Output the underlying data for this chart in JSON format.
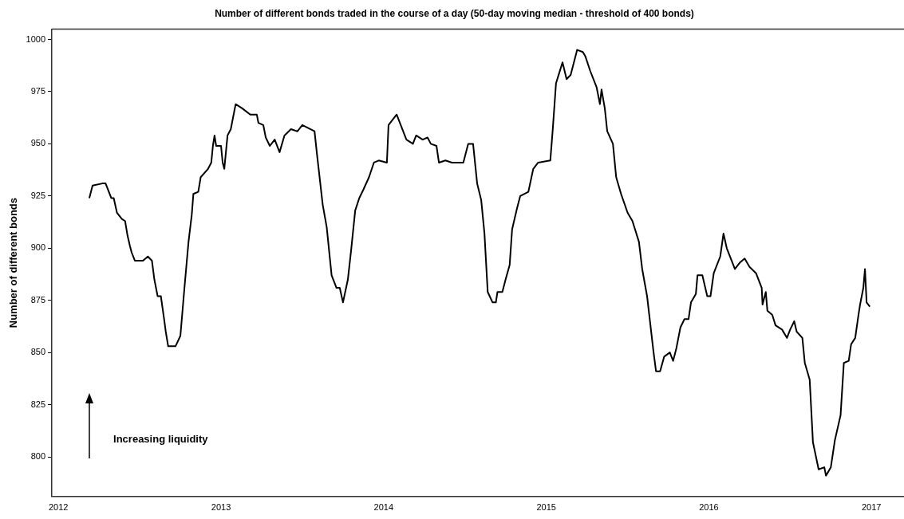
{
  "chart_data": {
    "type": "line",
    "title": "Number of different bonds traded in the course of a day (50-day moving median - threshold of 400 bonds)",
    "ylabel": "Number of different bonds",
    "annotations": [
      "Increasing liquidity"
    ],
    "series": [
      {
        "color": "#000000",
        "x": [
          2012.19,
          2012.21,
          2012.27,
          2012.29,
          2012.325,
          2012.34,
          2012.36,
          2012.39,
          2012.41,
          2012.425,
          2012.44,
          2012.45,
          2012.47,
          2012.52,
          2012.55,
          2012.575,
          2012.59,
          2012.61,
          2012.63,
          2012.65,
          2012.66,
          2012.675,
          2012.72,
          2012.75,
          2012.775,
          2012.8,
          2012.82,
          2012.83,
          2012.86,
          2012.875,
          2012.92,
          2012.94,
          2012.95,
          2012.96,
          2012.97,
          2013.0,
          2013.01,
          2013.02,
          2013.04,
          2013.06,
          2013.09,
          2013.13,
          2013.18,
          2013.22,
          2013.23,
          2013.26,
          2013.275,
          2013.3,
          2013.33,
          2013.36,
          2013.39,
          2013.43,
          2013.47,
          2013.5,
          2013.575,
          2013.59,
          2013.625,
          2013.65,
          2013.68,
          2013.71,
          2013.73,
          2013.75,
          2013.78,
          2013.8,
          2013.825,
          2013.85,
          2013.875,
          2013.91,
          2013.94,
          2013.97,
          2014.02,
          2014.03,
          2014.06,
          2014.08,
          2014.11,
          2014.14,
          2014.18,
          2014.2,
          2014.24,
          2014.27,
          2014.29,
          2014.325,
          2014.34,
          2014.38,
          2014.42,
          2014.49,
          2014.52,
          2014.55,
          2014.575,
          2014.6,
          2014.62,
          2014.64,
          2014.67,
          2014.69,
          2014.7,
          2014.73,
          2014.75,
          2014.775,
          2014.79,
          2014.82,
          2014.84,
          2014.89,
          2014.92,
          2014.95,
          2015.025,
          2015.04,
          2015.06,
          2015.08,
          2015.1,
          2015.125,
          2015.15,
          2015.17,
          2015.19,
          2015.225,
          2015.24,
          2015.27,
          2015.31,
          2015.33,
          2015.34,
          2015.36,
          2015.375,
          2015.41,
          2015.43,
          2015.46,
          2015.5,
          2015.53,
          2015.57,
          2015.59,
          2015.62,
          2015.66,
          2015.675,
          2015.7,
          2015.725,
          2015.76,
          2015.78,
          2015.8,
          2015.825,
          2015.85,
          2015.875,
          2015.89,
          2015.92,
          2015.93,
          2015.96,
          2015.99,
          2016.01,
          2016.03,
          2016.07,
          2016.09,
          2016.11,
          2016.16,
          2016.19,
          2016.22,
          2016.25,
          2016.29,
          2016.325,
          2016.33,
          2016.35,
          2016.36,
          2016.39,
          2016.41,
          2016.45,
          2016.48,
          2016.5,
          2016.525,
          2016.54,
          2016.575,
          2016.59,
          2016.62,
          2016.64,
          2016.675,
          2016.71,
          2016.72,
          2016.75,
          2016.775,
          2016.81,
          2016.83,
          2016.86,
          2016.875,
          2016.9,
          2016.92,
          2016.93,
          2016.95,
          2016.96,
          2016.97,
          2016.99
        ],
        "values": [
          924,
          930,
          931,
          931,
          924,
          924,
          917,
          914,
          913,
          906,
          901,
          898,
          894,
          894,
          896,
          894,
          885,
          877,
          877,
          866,
          860,
          853,
          853,
          858,
          881,
          903,
          916,
          926,
          927,
          934,
          938,
          941,
          949,
          954,
          949,
          949,
          941,
          938,
          954,
          957,
          969,
          967,
          964,
          964,
          960,
          959,
          953,
          949,
          952,
          946,
          954,
          957,
          956,
          959,
          956,
          945,
          921,
          910,
          887,
          881,
          881,
          874,
          885,
          899,
          918,
          924,
          928,
          934,
          941,
          942,
          941,
          959,
          962,
          964,
          958,
          952,
          950,
          954,
          952,
          953,
          950,
          949,
          941,
          942,
          941,
          941,
          950,
          950,
          931,
          923,
          907,
          879,
          874,
          874,
          879,
          879,
          885,
          892,
          909,
          919,
          925,
          927,
          938,
          941,
          942,
          957,
          979,
          984,
          989,
          981,
          983,
          989,
          995,
          994,
          992,
          985,
          977,
          969,
          976,
          967,
          956,
          950,
          934,
          926,
          917,
          913,
          903,
          890,
          877,
          850,
          841,
          841,
          848,
          850,
          846,
          852,
          862,
          866,
          866,
          874,
          878,
          887,
          887,
          877,
          877,
          888,
          896,
          907,
          900,
          890,
          893,
          895,
          891,
          888,
          881,
          873,
          879,
          870,
          868,
          863,
          861,
          857,
          861,
          865,
          860,
          857,
          845,
          837,
          807,
          794,
          795,
          791,
          795,
          808,
          820,
          845,
          846,
          854,
          857,
          868,
          873,
          881,
          890,
          874,
          872
        ]
      }
    ],
    "xlim": [
      2011.96,
      2017.2
    ],
    "xticks": [
      2012,
      2013,
      2014,
      2015,
      2016,
      2017
    ],
    "ylim": [
      781,
      1005
    ],
    "yticks": [
      800,
      825,
      850,
      875,
      900,
      925,
      950,
      975,
      1000
    ],
    "grid": false,
    "legend": false,
    "marker": "none",
    "line_style": "solid"
  }
}
